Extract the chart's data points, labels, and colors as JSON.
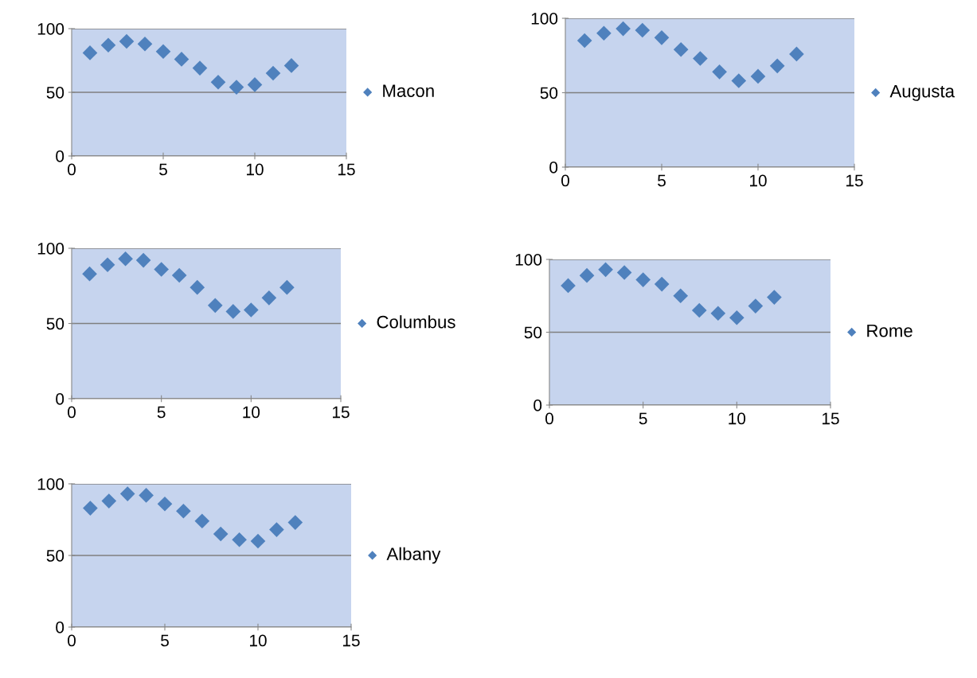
{
  "chart_data": [
    {
      "type": "scatter",
      "x": [
        1,
        2,
        3,
        4,
        5,
        6,
        7,
        8,
        9,
        10,
        11,
        12
      ],
      "series": [
        {
          "name": "Macon",
          "color": "#4f81bd",
          "values": [
            81,
            87,
            90,
            88,
            82,
            76,
            69,
            58,
            54,
            56,
            65,
            71
          ]
        }
      ],
      "xlim": [
        0,
        15
      ],
      "xticks": [
        0,
        5,
        10,
        15
      ],
      "ylim": [
        0,
        100
      ],
      "yticks": [
        0,
        50,
        100
      ],
      "grid": "y",
      "legend": "right",
      "marker": "diamond"
    },
    {
      "type": "scatter",
      "x": [
        1,
        2,
        3,
        4,
        5,
        6,
        7,
        8,
        9,
        10,
        11,
        12
      ],
      "series": [
        {
          "name": "Augusta",
          "color": "#4f81bd",
          "values": [
            85,
            90,
            93,
            92,
            87,
            79,
            73,
            64,
            58,
            61,
            68,
            76
          ]
        }
      ],
      "xlim": [
        0,
        15
      ],
      "xticks": [
        0,
        5,
        10,
        15
      ],
      "ylim": [
        0,
        100
      ],
      "yticks": [
        0,
        50,
        100
      ],
      "grid": "y",
      "legend": "right",
      "marker": "diamond"
    },
    {
      "type": "scatter",
      "x": [
        1,
        2,
        3,
        4,
        5,
        6,
        7,
        8,
        9,
        10,
        11,
        12
      ],
      "series": [
        {
          "name": "Columbus",
          "color": "#4f81bd",
          "values": [
            83,
            89,
            93,
            92,
            86,
            82,
            74,
            62,
            58,
            59,
            67,
            74
          ]
        }
      ],
      "xlim": [
        0,
        15
      ],
      "xticks": [
        0,
        5,
        10,
        15
      ],
      "ylim": [
        0,
        100
      ],
      "yticks": [
        0,
        50,
        100
      ],
      "grid": "y",
      "legend": "right",
      "marker": "diamond"
    },
    {
      "type": "scatter",
      "x": [
        1,
        2,
        3,
        4,
        5,
        6,
        7,
        8,
        9,
        10,
        11,
        12
      ],
      "series": [
        {
          "name": "Rome",
          "color": "#4f81bd",
          "values": [
            82,
            89,
            93,
            91,
            86,
            83,
            75,
            65,
            63,
            60,
            68,
            74
          ]
        }
      ],
      "xlim": [
        0,
        15
      ],
      "xticks": [
        0,
        5,
        10,
        15
      ],
      "ylim": [
        0,
        100
      ],
      "yticks": [
        0,
        50,
        100
      ],
      "grid": "y",
      "legend": "right",
      "marker": "diamond"
    },
    {
      "type": "scatter",
      "x": [
        1,
        2,
        3,
        4,
        5,
        6,
        7,
        8,
        9,
        10,
        11,
        12
      ],
      "series": [
        {
          "name": "Albany",
          "color": "#4f81bd",
          "values": [
            83,
            88,
            93,
            92,
            86,
            81,
            74,
            65,
            61,
            60,
            68,
            73
          ]
        }
      ],
      "xlim": [
        0,
        15
      ],
      "xticks": [
        0,
        5,
        10,
        15
      ],
      "ylim": [
        0,
        100
      ],
      "yticks": [
        0,
        50,
        100
      ],
      "grid": "y",
      "legend": "right",
      "marker": "diamond"
    }
  ]
}
